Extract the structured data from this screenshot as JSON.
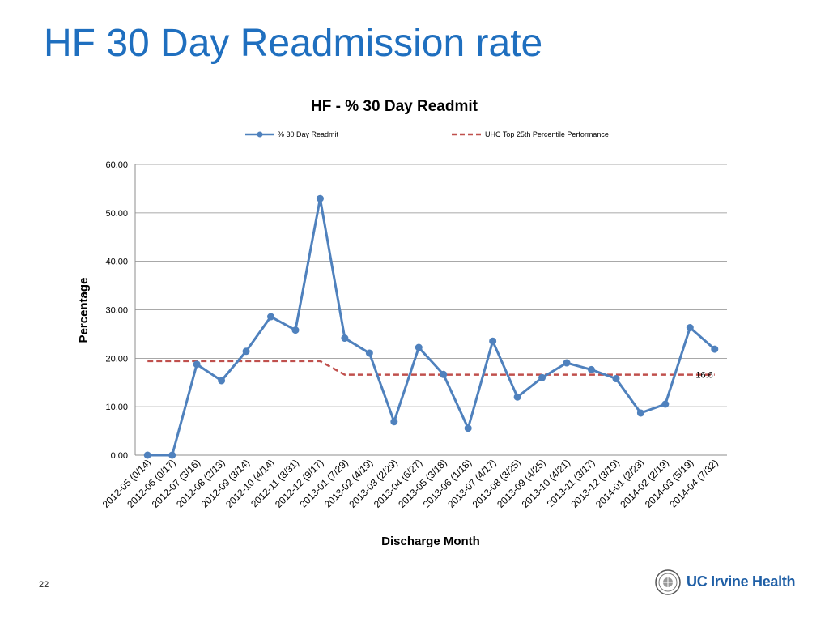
{
  "slide": {
    "title": "HF 30 Day Readmission rate",
    "number": "22",
    "logo_text": "UC Irvine Health"
  },
  "colors": {
    "title": "#1f6fbf",
    "series_main": "#4f81bd",
    "series_benchmark": "#c0504d",
    "gridline": "#8c8c8c"
  },
  "chart_data": {
    "type": "line",
    "title": "HF - % 30 Day Readmit",
    "xlabel": "Discharge Month",
    "ylabel": "Percentage",
    "ylim": [
      0,
      60
    ],
    "yticks": [
      "0.00",
      "10.00",
      "20.00",
      "30.00",
      "40.00",
      "50.00",
      "60.00"
    ],
    "grid": true,
    "legend_position": "top",
    "categories": [
      "2012-05 (0/14)",
      "2012-06 (0/17)",
      "2012-07 (3/16)",
      "2012-08 (2/13)",
      "2012-09 (3/14)",
      "2012-10 (4/14)",
      "2012-11 (8/31)",
      "2012-12 (9/17)",
      "2013-01 (7/29)",
      "2013-02 (4/19)",
      "2013-03 (2/29)",
      "2013-04 (6/27)",
      "2013-05 (3/18)",
      "2013-06 (1/18)",
      "2013-07 (4/17)",
      "2013-08 (3/25)",
      "2013-09 (4/25)",
      "2013-10 (4/21)",
      "2013-11 (3/17)",
      "2013-12 (3/19)",
      "2014-01 (2/23)",
      "2014-02 (2/19)",
      "2014-03 (5/19)",
      "2014-04 (7/32)"
    ],
    "series": [
      {
        "name": "% 30 Day Readmit",
        "style": "solid-marker",
        "values": [
          0,
          0,
          18.75,
          15.38,
          21.43,
          28.57,
          25.81,
          52.94,
          24.14,
          21.05,
          6.9,
          22.22,
          16.67,
          5.56,
          23.53,
          12.0,
          16.0,
          19.05,
          17.65,
          15.79,
          8.7,
          10.53,
          26.32,
          21.88
        ]
      },
      {
        "name": "UHC Top 25th Percentile Performance",
        "style": "dashed",
        "values": [
          19.4,
          19.4,
          19.4,
          19.4,
          19.4,
          19.4,
          19.4,
          19.4,
          16.6,
          16.6,
          16.6,
          16.6,
          16.6,
          16.6,
          16.6,
          16.6,
          16.6,
          16.6,
          16.6,
          16.6,
          16.6,
          16.6,
          16.6,
          16.6
        ],
        "end_label": "16.6"
      }
    ]
  }
}
